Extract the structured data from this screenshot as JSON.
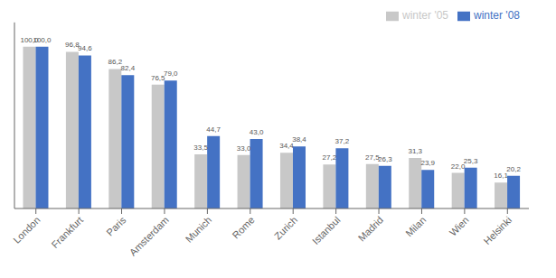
{
  "chart_data": {
    "type": "bar",
    "categories": [
      "London",
      "Frankfurt",
      "Paris",
      "Amsterdam",
      "Munich",
      "Rome",
      "Zurich",
      "Istanbul",
      "Madrid",
      "Milan",
      "Wien",
      "Helsinki"
    ],
    "series": [
      {
        "name": "winter '05",
        "color": "#c8c8c8",
        "values": [
          100.0,
          96.8,
          86.2,
          76.5,
          33.5,
          33.0,
          34.4,
          27.2,
          27.5,
          31.3,
          22.0,
          16.1
        ],
        "value_labels": [
          "100,0",
          "96,8",
          "86,2",
          "76,5",
          "33,5",
          "33,0",
          "34,4",
          "27,2",
          "27,5",
          "31,3",
          "22,0",
          "16,1"
        ]
      },
      {
        "name": "winter '08",
        "color": "#4472c4",
        "values": [
          100.0,
          94.6,
          82.4,
          79.0,
          44.7,
          43.0,
          38.4,
          37.2,
          26.3,
          23.9,
          25.3,
          20.2
        ],
        "value_labels": [
          "100,0",
          "94,6",
          "82,4",
          "79,0",
          "44,7",
          "43,0",
          "38,4",
          "37,2",
          "26,3",
          "23,9",
          "25,3",
          "20,2"
        ]
      }
    ],
    "ylim": [
      0,
      115
    ],
    "grid": false,
    "legend": "upper right",
    "data_labels": true,
    "tick_labels": "x"
  }
}
